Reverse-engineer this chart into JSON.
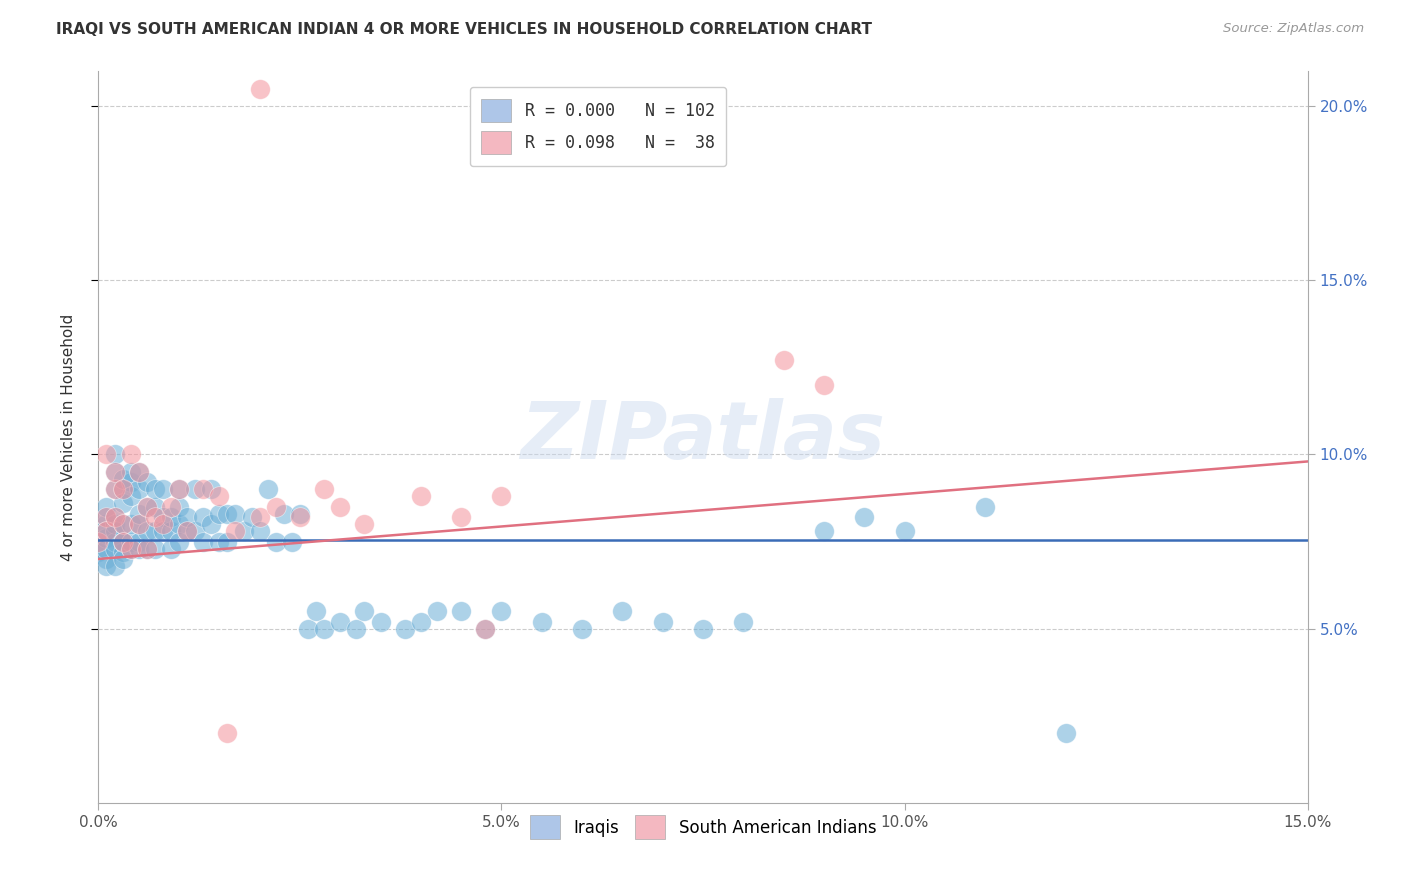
{
  "title": "IRAQI VS SOUTH AMERICAN INDIAN 4 OR MORE VEHICLES IN HOUSEHOLD CORRELATION CHART",
  "source": "Source: ZipAtlas.com",
  "ylabel": "4 or more Vehicles in Household",
  "watermark": "ZIPatlas",
  "iraqi_color": "#6baed6",
  "south_american_color": "#f4939c",
  "iraqi_patch_color": "#aec6e8",
  "south_patch_color": "#f4b8c1",
  "iraqi_line_color": "#3b6cb7",
  "south_american_line_color": "#e07080",
  "background_color": "#ffffff",
  "grid_color": "#cccccc",
  "xlim": [
    0.0,
    0.15
  ],
  "ylim": [
    0.0,
    0.21
  ],
  "iraqi_x": [
    0.0,
    0.0,
    0.001,
    0.001,
    0.001,
    0.001,
    0.001,
    0.001,
    0.001,
    0.001,
    0.002,
    0.002,
    0.002,
    0.002,
    0.002,
    0.002,
    0.002,
    0.002,
    0.002,
    0.003,
    0.003,
    0.003,
    0.003,
    0.003,
    0.003,
    0.003,
    0.003,
    0.004,
    0.004,
    0.004,
    0.004,
    0.004,
    0.004,
    0.005,
    0.005,
    0.005,
    0.005,
    0.005,
    0.005,
    0.006,
    0.006,
    0.006,
    0.006,
    0.007,
    0.007,
    0.007,
    0.007,
    0.008,
    0.008,
    0.008,
    0.009,
    0.009,
    0.009,
    0.01,
    0.01,
    0.01,
    0.01,
    0.011,
    0.011,
    0.012,
    0.012,
    0.013,
    0.013,
    0.014,
    0.014,
    0.015,
    0.015,
    0.016,
    0.016,
    0.017,
    0.018,
    0.019,
    0.02,
    0.021,
    0.022,
    0.023,
    0.024,
    0.025,
    0.026,
    0.027,
    0.028,
    0.03,
    0.032,
    0.033,
    0.035,
    0.038,
    0.04,
    0.042,
    0.045,
    0.048,
    0.05,
    0.055,
    0.06,
    0.065,
    0.07,
    0.075,
    0.08,
    0.09,
    0.095,
    0.1,
    0.11,
    0.12
  ],
  "iraqi_y": [
    0.075,
    0.072,
    0.08,
    0.076,
    0.082,
    0.07,
    0.068,
    0.073,
    0.085,
    0.078,
    0.075,
    0.08,
    0.09,
    0.073,
    0.068,
    0.082,
    0.078,
    0.095,
    0.1,
    0.072,
    0.075,
    0.08,
    0.09,
    0.086,
    0.093,
    0.075,
    0.07,
    0.075,
    0.08,
    0.092,
    0.088,
    0.073,
    0.095,
    0.08,
    0.075,
    0.083,
    0.09,
    0.073,
    0.095,
    0.078,
    0.085,
    0.092,
    0.073,
    0.078,
    0.085,
    0.09,
    0.073,
    0.082,
    0.078,
    0.09,
    0.078,
    0.082,
    0.073,
    0.08,
    0.075,
    0.085,
    0.09,
    0.078,
    0.082,
    0.078,
    0.09,
    0.082,
    0.075,
    0.08,
    0.09,
    0.075,
    0.083,
    0.075,
    0.083,
    0.083,
    0.078,
    0.082,
    0.078,
    0.09,
    0.075,
    0.083,
    0.075,
    0.083,
    0.05,
    0.055,
    0.05,
    0.052,
    0.05,
    0.055,
    0.052,
    0.05,
    0.052,
    0.055,
    0.055,
    0.05,
    0.055,
    0.052,
    0.05,
    0.055,
    0.052,
    0.05,
    0.052,
    0.078,
    0.082,
    0.078,
    0.085,
    0.02
  ],
  "south_x": [
    0.0,
    0.001,
    0.001,
    0.001,
    0.002,
    0.002,
    0.002,
    0.003,
    0.003,
    0.003,
    0.004,
    0.004,
    0.005,
    0.005,
    0.006,
    0.006,
    0.007,
    0.008,
    0.009,
    0.01,
    0.011,
    0.013,
    0.015,
    0.017,
    0.02,
    0.022,
    0.025,
    0.028,
    0.03,
    0.033,
    0.04,
    0.045,
    0.048,
    0.05,
    0.085,
    0.09,
    0.02,
    0.016
  ],
  "south_y": [
    0.075,
    0.1,
    0.082,
    0.078,
    0.09,
    0.082,
    0.095,
    0.08,
    0.075,
    0.09,
    0.1,
    0.073,
    0.08,
    0.095,
    0.085,
    0.073,
    0.082,
    0.08,
    0.085,
    0.09,
    0.078,
    0.09,
    0.088,
    0.078,
    0.082,
    0.085,
    0.082,
    0.09,
    0.085,
    0.08,
    0.088,
    0.082,
    0.05,
    0.088,
    0.127,
    0.12,
    0.205,
    0.02
  ],
  "iraqi_line_y": 0.0755,
  "south_line_x0": 0.0,
  "south_line_y0": 0.07,
  "south_line_x1": 0.15,
  "south_line_y1": 0.098
}
